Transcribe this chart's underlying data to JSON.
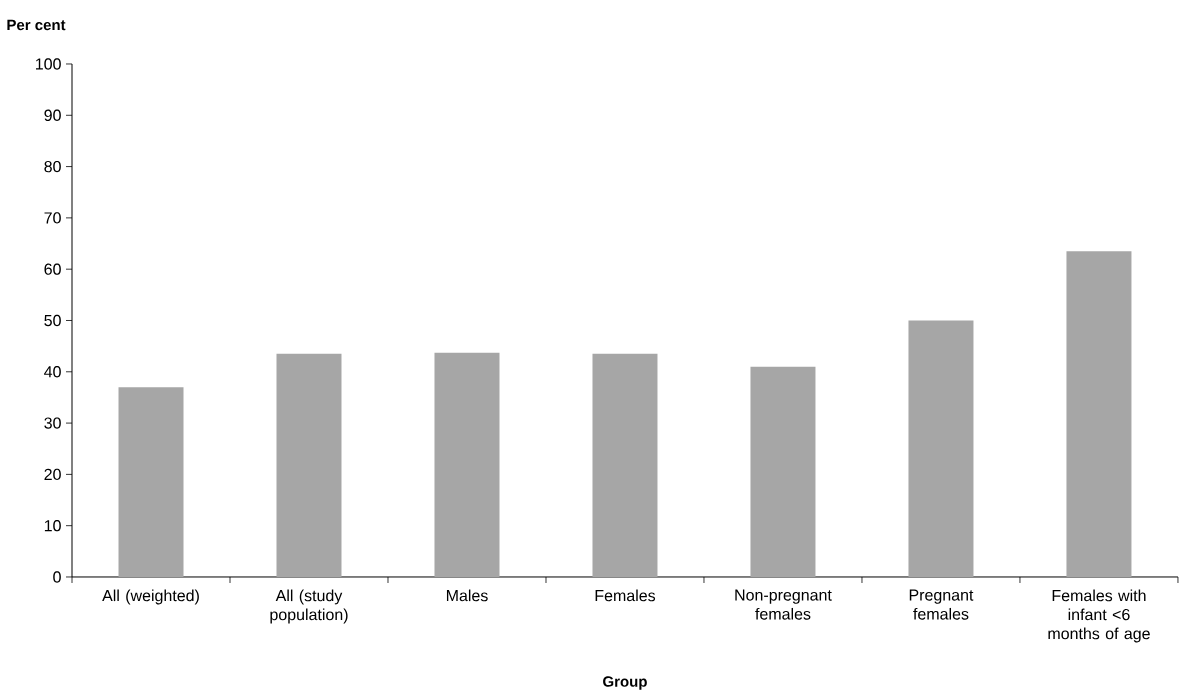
{
  "chart_data": {
    "type": "bar",
    "xlabel": "Group",
    "ylabel": "Per cent",
    "categories": [
      "All (weighted)",
      "All (study population)",
      "Males",
      "Females",
      "Non-pregnant females",
      "Pregnant females",
      "Females with infant <6 months of age"
    ],
    "values": [
      37,
      43.5,
      43.7,
      43.5,
      41,
      50,
      63.5
    ],
    "color": "#a6a6a6",
    "ylim": [
      0,
      100
    ],
    "yticks": [
      0,
      10,
      20,
      30,
      40,
      50,
      60,
      70,
      80,
      90,
      100
    ],
    "grid": false
  }
}
